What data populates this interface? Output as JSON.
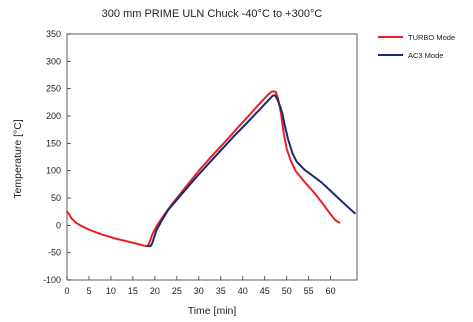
{
  "chart_data": {
    "type": "line",
    "title": "300 mm PRIME ULN Chuck -40°C to +300°C",
    "xlabel": "Time [min]",
    "ylabel": "Temperature [°C]",
    "xlim": [
      0,
      66
    ],
    "ylim": [
      -100,
      350
    ],
    "xticks": [
      "0",
      "5",
      "10",
      "15",
      "20",
      "25",
      "30",
      "35",
      "40",
      "45",
      "50",
      "55",
      "60"
    ],
    "yticks": [
      "-100",
      "-50",
      "0",
      "50",
      "100",
      "150",
      "200",
      "250",
      "300",
      "350"
    ],
    "grid": false,
    "legend_position": "top-right",
    "series": [
      {
        "name": "TURBO Mode",
        "color": "#e8202a",
        "points": [
          [
            0,
            25
          ],
          [
            0.5,
            20
          ],
          [
            1,
            13
          ],
          [
            2,
            5
          ],
          [
            3,
            0
          ],
          [
            5,
            -8
          ],
          [
            8,
            -17
          ],
          [
            11,
            -24
          ],
          [
            14,
            -30
          ],
          [
            16,
            -34
          ],
          [
            17.5,
            -37
          ],
          [
            18.2,
            -38
          ],
          [
            18.6,
            -35
          ],
          [
            19.5,
            -15
          ],
          [
            20.5,
            0
          ],
          [
            22,
            18
          ],
          [
            24,
            40
          ],
          [
            27,
            70
          ],
          [
            30,
            100
          ],
          [
            33,
            127
          ],
          [
            36,
            153
          ],
          [
            39,
            180
          ],
          [
            42,
            206
          ],
          [
            44,
            224
          ],
          [
            45.5,
            237
          ],
          [
            46.5,
            244
          ],
          [
            47,
            245
          ],
          [
            47.5,
            244
          ],
          [
            48,
            233
          ],
          [
            48.7,
            205
          ],
          [
            49.3,
            170
          ],
          [
            50,
            140
          ],
          [
            51,
            117
          ],
          [
            52,
            100
          ],
          [
            54,
            80
          ],
          [
            56,
            62
          ],
          [
            58,
            42
          ],
          [
            60,
            20
          ],
          [
            61,
            10
          ],
          [
            62,
            5
          ]
        ]
      },
      {
        "name": "AC3 Mode",
        "color": "#1a2a6c",
        "points": [
          [
            18.5,
            -38
          ],
          [
            19,
            -38
          ],
          [
            19.4,
            -33
          ],
          [
            20.3,
            -10
          ],
          [
            21.5,
            8
          ],
          [
            23,
            28
          ],
          [
            26,
            56
          ],
          [
            29,
            84
          ],
          [
            32,
            111
          ],
          [
            35,
            137
          ],
          [
            38,
            163
          ],
          [
            41,
            188
          ],
          [
            44,
            213
          ],
          [
            45.5,
            226
          ],
          [
            46.8,
            237
          ],
          [
            47.3,
            238
          ],
          [
            47.8,
            232
          ],
          [
            48.5,
            218
          ],
          [
            49,
            205
          ],
          [
            49.5,
            185
          ],
          [
            50.3,
            158
          ],
          [
            51.3,
            132
          ],
          [
            52.3,
            116
          ],
          [
            54,
            102
          ],
          [
            56,
            90
          ],
          [
            58,
            78
          ],
          [
            60,
            63
          ],
          [
            62,
            48
          ],
          [
            64,
            33
          ],
          [
            65.5,
            22
          ]
        ]
      }
    ]
  }
}
